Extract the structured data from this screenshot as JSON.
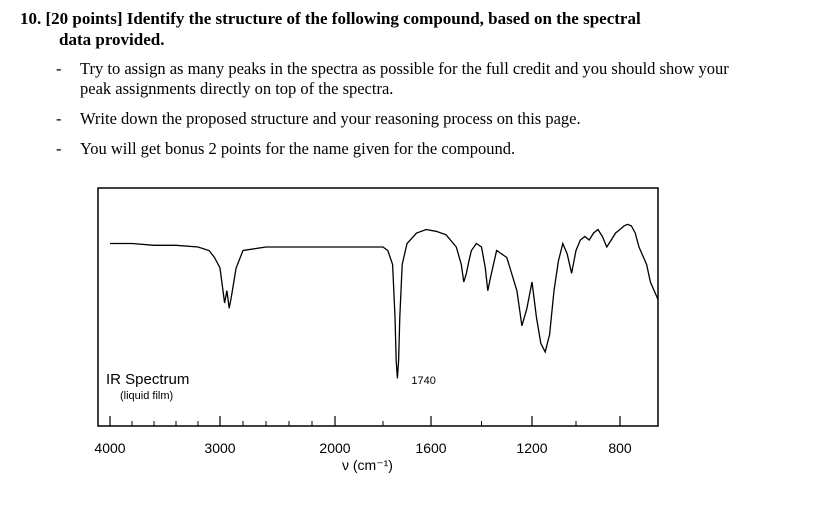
{
  "question": {
    "number_points": "10. [20 points]",
    "title_line1": " Identify the structure of the following compound, based on the spectral",
    "title_line2": "data provided.",
    "bullets": [
      {
        "dash": "-",
        "line1": "Try to assign as many peaks in the spectra as possible for the full credit and you should show your",
        "line2": "peak assignments directly on top of the spectra."
      },
      {
        "dash": "-",
        "line1": "Write down the proposed structure and your reasoning process on this page.",
        "line2": ""
      },
      {
        "dash": "-",
        "line1": "You will get bonus 2 points for the name given for the compound.",
        "line2": ""
      }
    ]
  },
  "chart_data": {
    "type": "line",
    "title": "IR Spectrum",
    "subtitle": "(liquid film)",
    "xlabel": "ν (cm⁻¹)",
    "ylabel": "",
    "x_ticks": [
      {
        "value": 4000,
        "label": "4000"
      },
      {
        "value": 3000,
        "label": "3000"
      },
      {
        "value": 2000,
        "label": "2000"
      },
      {
        "value": 1600,
        "label": "1600"
      },
      {
        "value": 1200,
        "label": "1200"
      },
      {
        "value": 800,
        "label": "800"
      }
    ],
    "annotations": [
      {
        "x": 1740,
        "label": "1740"
      }
    ],
    "series": [
      {
        "x": [
          4000,
          3800,
          3600,
          3400,
          3200,
          3100,
          3050,
          3000,
          2980,
          2960,
          2940,
          2920,
          2900,
          2880,
          2860,
          2800,
          2600,
          2400,
          2200,
          2000,
          1900,
          1800,
          1780,
          1760,
          1750,
          1745,
          1740,
          1735,
          1730,
          1720,
          1700,
          1660,
          1620,
          1580,
          1540,
          1500,
          1480,
          1470,
          1460,
          1450,
          1440,
          1420,
          1400,
          1385,
          1375,
          1365,
          1340,
          1300,
          1260,
          1240,
          1220,
          1200,
          1180,
          1160,
          1140,
          1120,
          1100,
          1080,
          1060,
          1040,
          1020,
          1000,
          980,
          960,
          940,
          920,
          900,
          880,
          860,
          840,
          820,
          800,
          780,
          760,
          740,
          720,
          700,
          680,
          660,
          640,
          620,
          600
        ],
        "y": [
          82,
          82,
          81,
          81,
          80,
          78,
          74,
          68,
          58,
          48,
          55,
          45,
          52,
          60,
          68,
          78,
          80,
          80,
          80,
          80,
          80,
          80,
          78,
          70,
          40,
          15,
          5,
          15,
          40,
          70,
          82,
          88,
          90,
          89,
          87,
          80,
          70,
          60,
          65,
          72,
          78,
          82,
          80,
          68,
          55,
          62,
          78,
          74,
          55,
          35,
          45,
          60,
          40,
          25,
          20,
          30,
          55,
          72,
          82,
          76,
          65,
          78,
          84,
          86,
          84,
          88,
          90,
          86,
          80,
          84,
          88,
          90,
          92,
          93,
          92,
          88,
          80,
          75,
          70,
          60,
          55,
          50
        ]
      }
    ],
    "ylim": [
      0,
      100
    ]
  }
}
